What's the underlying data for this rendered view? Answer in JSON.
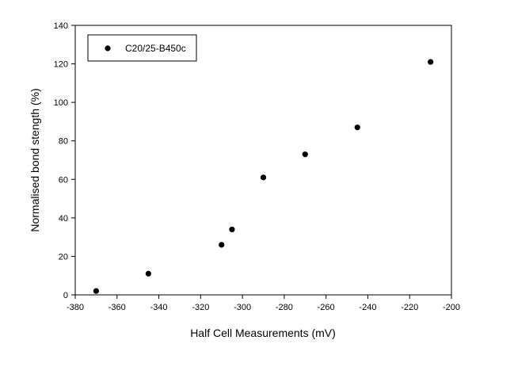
{
  "chart_data": {
    "type": "scatter",
    "title": "",
    "xlabel": "Half Cell Measurements (mV)",
    "ylabel": "Normalised bond stength (%)",
    "xlim": [
      -380,
      -200
    ],
    "ylim": [
      0,
      140
    ],
    "xticks": [
      -380,
      -360,
      -340,
      -320,
      -300,
      -280,
      -260,
      -240,
      -220,
      -200
    ],
    "yticks": [
      0,
      20,
      40,
      60,
      80,
      100,
      120,
      140
    ],
    "grid": false,
    "legend_position": "top-left",
    "series": [
      {
        "name": "C20/25-B450c",
        "color": "#000000",
        "marker": "circle",
        "points": [
          {
            "x": -370,
            "y": 2
          },
          {
            "x": -345,
            "y": 11
          },
          {
            "x": -310,
            "y": 26
          },
          {
            "x": -305,
            "y": 34
          },
          {
            "x": -290,
            "y": 61
          },
          {
            "x": -270,
            "y": 73
          },
          {
            "x": -245,
            "y": 87
          },
          {
            "x": -210,
            "y": 121
          }
        ]
      }
    ]
  }
}
